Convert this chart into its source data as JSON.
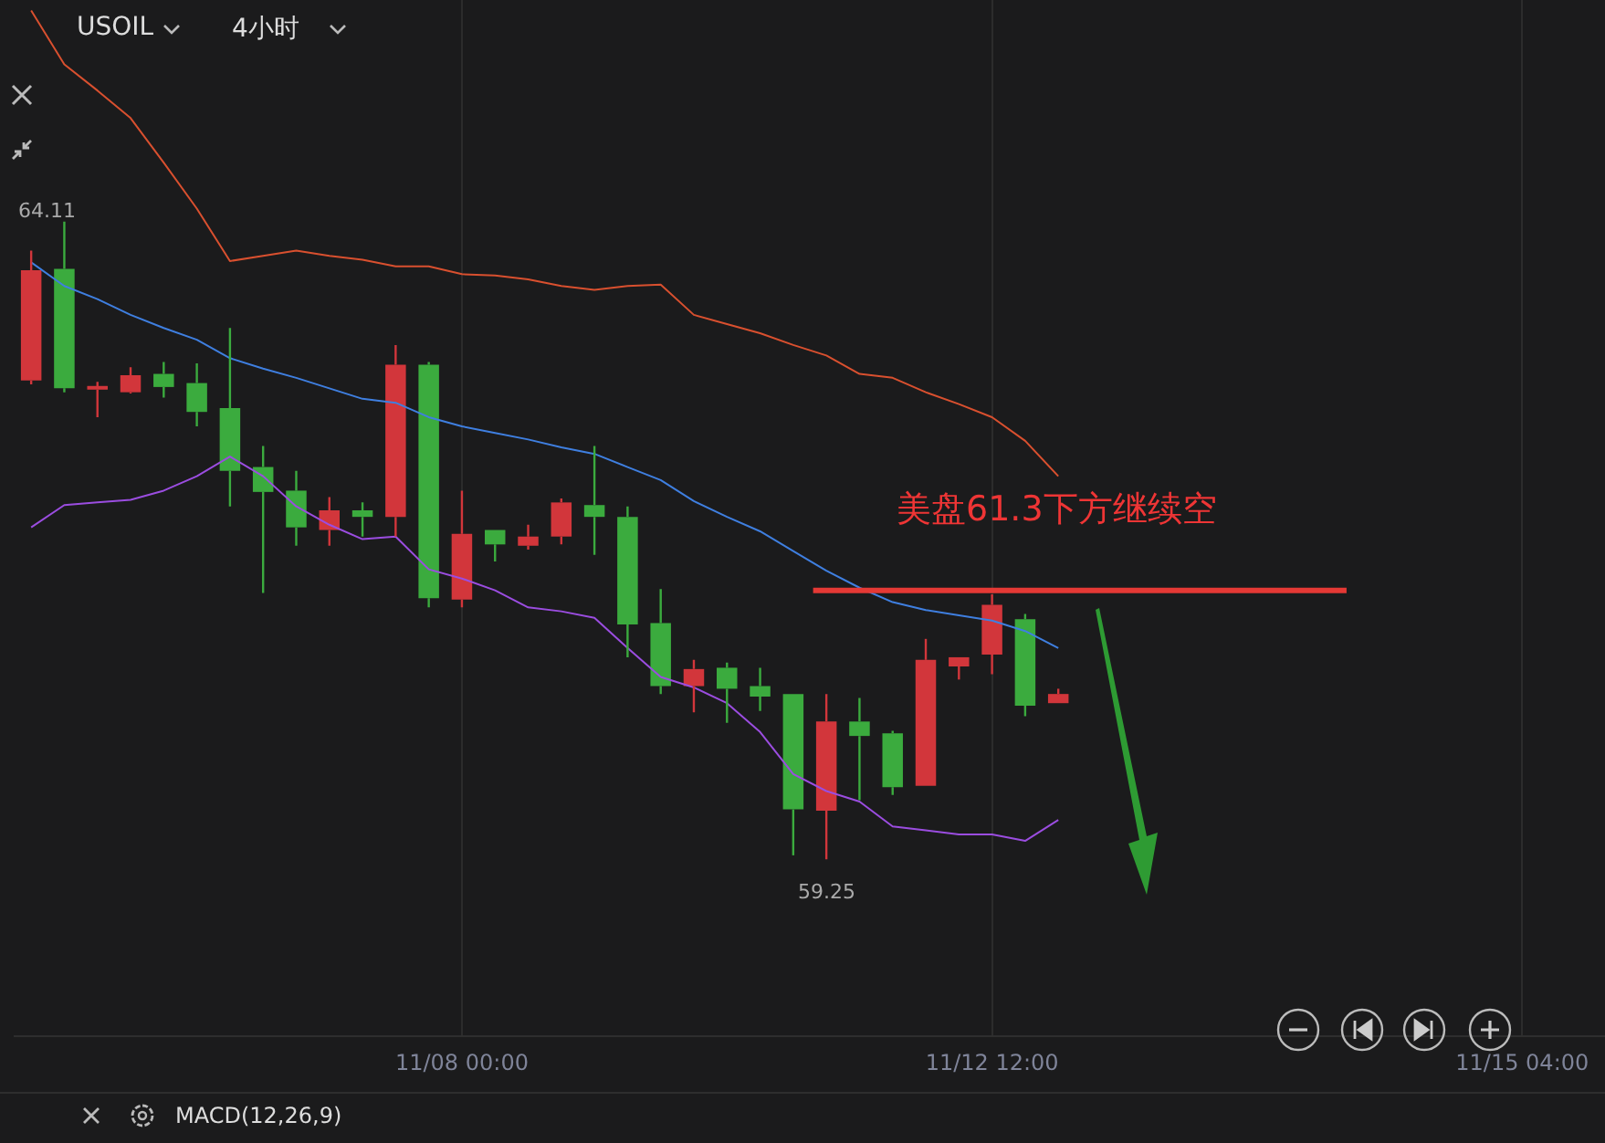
{
  "chart_data": {
    "type": "candlestick",
    "title": "USOIL",
    "subtitle": "4小时",
    "categories": [
      null,
      null,
      null,
      null,
      null,
      null,
      null,
      null,
      null,
      null,
      null,
      null,
      null,
      "11/08 00:00",
      null,
      null,
      null,
      null,
      null,
      null,
      null,
      null,
      null,
      null,
      null,
      null,
      null,
      null,
      null,
      "11/12 12:00",
      null,
      null,
      null,
      null,
      null,
      null,
      null,
      null,
      null,
      null,
      null,
      null,
      null,
      null,
      null,
      "11/15 04:00",
      null,
      null
    ],
    "ohlc": [
      [
        62.9,
        63.89,
        62.87,
        63.74
      ],
      [
        63.75,
        64.11,
        62.81,
        62.84
      ],
      [
        62.83,
        62.89,
        62.62,
        62.85
      ],
      [
        62.81,
        63.0,
        62.8,
        62.94
      ],
      [
        62.95,
        63.04,
        62.77,
        62.85
      ],
      [
        62.88,
        63.03,
        62.55,
        62.66
      ],
      [
        62.69,
        63.3,
        61.94,
        62.21
      ],
      [
        62.24,
        62.4,
        61.28,
        62.05
      ],
      [
        62.06,
        62.21,
        61.64,
        61.78
      ],
      [
        61.76,
        62.01,
        61.64,
        61.91
      ],
      [
        61.91,
        61.97,
        61.71,
        61.86
      ],
      [
        61.86,
        63.17,
        61.71,
        63.02
      ],
      [
        63.02,
        63.04,
        61.17,
        61.24
      ],
      [
        61.23,
        62.06,
        61.17,
        61.73
      ],
      [
        61.76,
        61.76,
        61.52,
        61.65
      ],
      [
        61.64,
        61.8,
        61.61,
        61.71
      ],
      [
        61.71,
        62.0,
        61.65,
        61.97
      ],
      [
        61.95,
        62.4,
        61.57,
        61.86
      ],
      [
        61.86,
        61.94,
        60.79,
        61.04
      ],
      [
        61.05,
        61.31,
        60.51,
        60.57
      ],
      [
        60.57,
        60.77,
        60.37,
        60.7
      ],
      [
        60.71,
        60.75,
        60.29,
        60.55
      ],
      [
        60.57,
        60.71,
        60.38,
        60.49
      ],
      [
        60.51,
        60.51,
        59.28,
        59.63
      ],
      [
        59.62,
        60.51,
        59.25,
        60.3
      ],
      [
        60.3,
        60.48,
        59.7,
        60.19
      ],
      [
        60.21,
        60.23,
        59.74,
        59.8
      ],
      [
        59.81,
        60.93,
        59.81,
        60.77
      ],
      [
        60.72,
        60.79,
        60.62,
        60.79
      ],
      [
        60.81,
        61.27,
        60.66,
        61.19
      ],
      [
        61.08,
        61.12,
        60.34,
        60.42
      ],
      [
        60.44,
        60.55,
        60.44,
        60.51
      ],
      null,
      null,
      null,
      null,
      null,
      null,
      null,
      null,
      null,
      null,
      null,
      null,
      null,
      null,
      null,
      null
    ],
    "colors": [
      "#d2363b",
      "#3bab3e",
      "#d2363b",
      "#d2363b",
      "#3bab3e",
      "#3bab3e",
      "#3bab3e",
      "#3bab3e",
      "#3bab3e",
      "#d2363b",
      "#3bab3e",
      "#d2363b",
      "#3bab3e",
      "#d2363b",
      "#3bab3e",
      "#d2363b",
      "#d2363b",
      "#3bab3e",
      "#3bab3e",
      "#3bab3e",
      "#d2363b",
      "#3bab3e",
      "#3bab3e",
      "#3bab3e",
      "#d2363b",
      "#3bab3e",
      "#3bab3e",
      "#d2363b",
      "#d2363b",
      "#d2363b",
      "#3bab3e",
      "#d2363b",
      null,
      null,
      null,
      null,
      null,
      null,
      null,
      null,
      null,
      null,
      null,
      null,
      null,
      null,
      null,
      null
    ],
    "series": [
      {
        "type": "line",
        "color": "#d9502f",
        "values": [
          65.72,
          65.31,
          65.11,
          64.9,
          64.56,
          64.21,
          63.81,
          63.85,
          63.89,
          63.85,
          63.82,
          63.77,
          63.77,
          63.71,
          63.7,
          63.67,
          63.62,
          63.59,
          63.62,
          63.63,
          63.4,
          63.33,
          63.26,
          63.17,
          63.09,
          62.95,
          62.92,
          62.81,
          62.72,
          62.62,
          62.44,
          62.17,
          null,
          null,
          null,
          null,
          null,
          null,
          null,
          null,
          null,
          null,
          null,
          null,
          null,
          null,
          null,
          null
        ]
      },
      {
        "type": "line",
        "color": "#3f7fe0",
        "values": [
          63.8,
          63.62,
          63.52,
          63.4,
          63.3,
          63.21,
          63.07,
          62.99,
          62.92,
          62.84,
          62.76,
          62.73,
          62.62,
          62.55,
          62.5,
          62.45,
          62.39,
          62.34,
          62.24,
          62.14,
          61.98,
          61.86,
          61.75,
          61.6,
          61.45,
          61.32,
          61.21,
          61.15,
          61.11,
          61.07,
          60.99,
          60.86,
          null,
          null,
          null,
          null,
          null,
          null,
          null,
          null,
          null,
          null,
          null,
          null,
          null,
          null,
          null,
          null
        ]
      },
      {
        "type": "line",
        "color": "#9b4de0",
        "values": [
          61.78,
          61.95,
          61.97,
          61.99,
          62.06,
          62.17,
          62.32,
          62.17,
          61.94,
          61.8,
          61.69,
          61.71,
          61.46,
          61.39,
          61.3,
          61.17,
          61.14,
          61.09,
          60.86,
          60.64,
          60.56,
          60.44,
          60.22,
          59.9,
          59.77,
          59.69,
          59.5,
          59.47,
          59.44,
          59.44,
          59.39,
          59.55,
          null,
          null,
          null,
          null,
          null,
          null,
          null,
          null,
          null,
          null,
          null,
          null,
          null,
          null,
          null,
          null
        ]
      }
    ],
    "ylim": [
      57.9,
      65.8
    ],
    "ref_lines": [
      {
        "axis": "y",
        "value": 61.3,
        "color": "#e53935"
      }
    ],
    "annotations": [
      "美盘61.3下方继续空",
      "MACD(12,26,9)",
      "64.11",
      "59.25"
    ],
    "grid": "x",
    "marker": "none",
    "legend": false
  }
}
